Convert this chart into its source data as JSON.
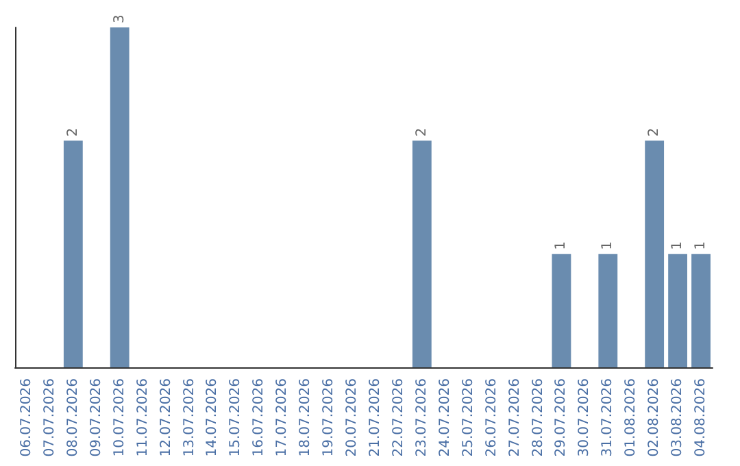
{
  "chart_data": {
    "type": "bar",
    "categories": [
      "06.07.2026",
      "07.07.2026",
      "08.07.2026",
      "09.07.2026",
      "10.07.2026",
      "11.07.2026",
      "12.07.2026",
      "13.07.2026",
      "14.07.2026",
      "15.07.2026",
      "16.07.2026",
      "17.07.2026",
      "18.07.2026",
      "19.07.2026",
      "20.07.2026",
      "21.07.2026",
      "22.07.2026",
      "23.07.2026",
      "24.07.2026",
      "25.07.2026",
      "26.07.2026",
      "27.07.2026",
      "28.07.2026",
      "29.07.2026",
      "30.07.2026",
      "31.07.2026",
      "01.08.2026",
      "02.08.2026",
      "03.08.2026",
      "04.08.2026"
    ],
    "values": [
      null,
      null,
      2,
      null,
      3,
      null,
      null,
      null,
      null,
      null,
      null,
      null,
      null,
      null,
      null,
      null,
      null,
      2,
      null,
      null,
      null,
      null,
      null,
      1,
      null,
      1,
      null,
      2,
      1,
      1
    ],
    "color": "#6a8caf",
    "data_labels": true,
    "tick_labels": "x"
  }
}
